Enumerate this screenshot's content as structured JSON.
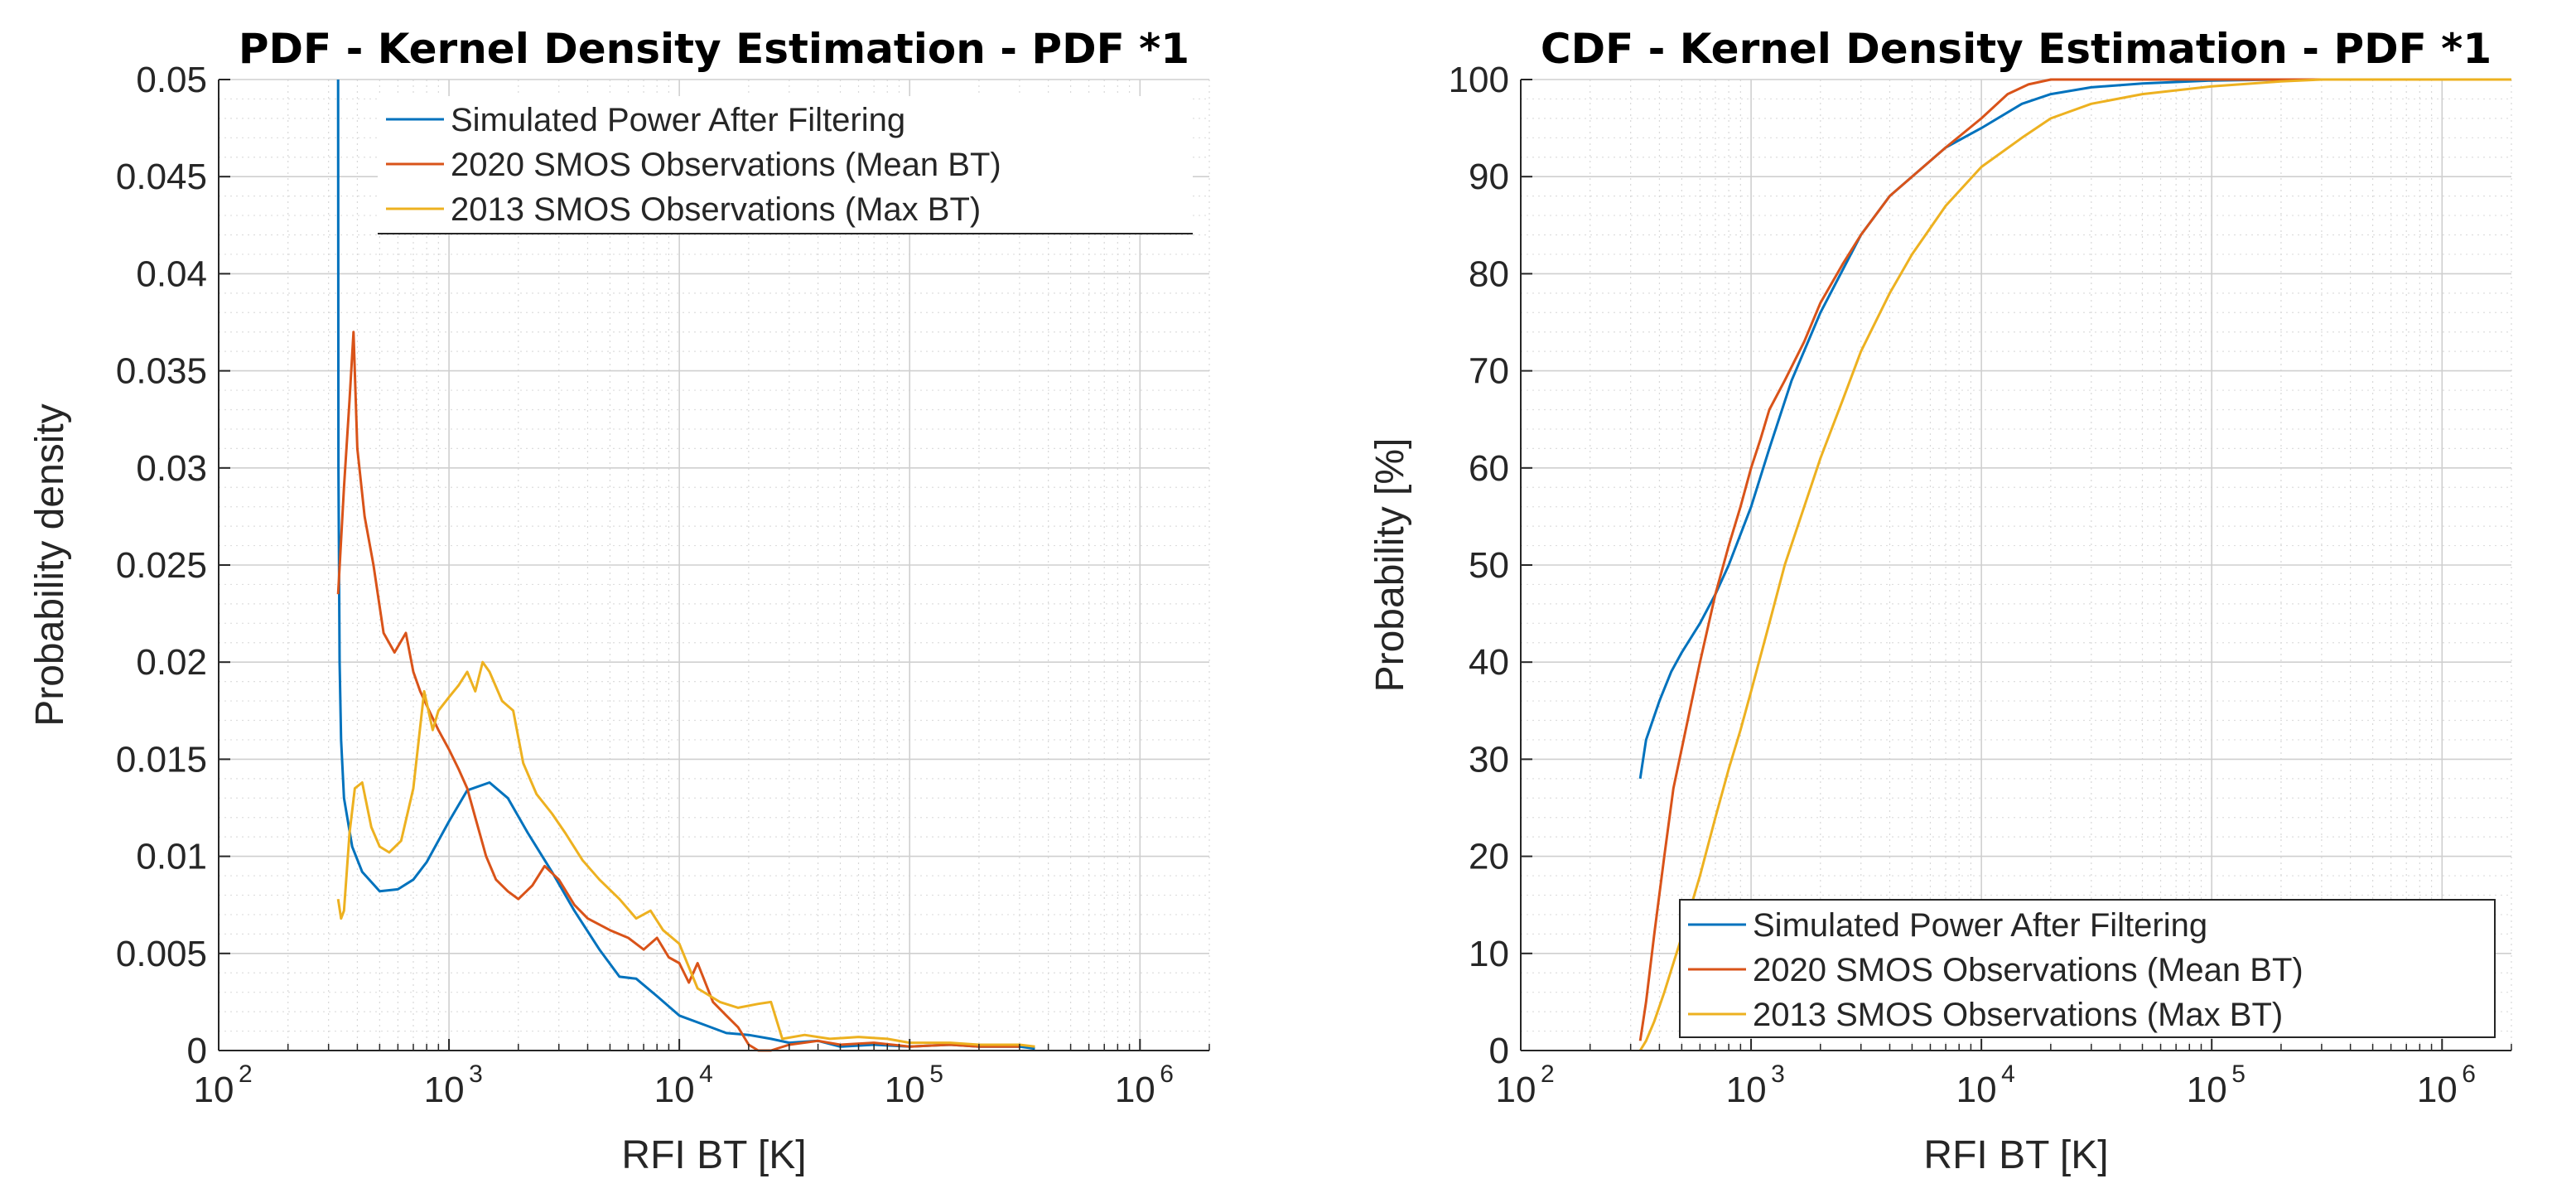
{
  "chart_data": [
    {
      "id": "pdf",
      "type": "line",
      "title": "PDF - Kernel Density Estimation - PDF *1",
      "xlabel": "RFI BT [K]",
      "ylabel": "Probability density",
      "xscale": "log",
      "xlim": [
        100,
        2000000
      ],
      "ylim": [
        0,
        0.05
      ],
      "yticks": [
        "0",
        "0.005",
        "0.01",
        "0.015",
        "0.02",
        "0.025",
        "0.03",
        "0.035",
        "0.04",
        "0.045",
        "0.05"
      ],
      "xticks": [
        {
          "base": "10",
          "exp": "2"
        },
        {
          "base": "10",
          "exp": "3"
        },
        {
          "base": "10",
          "exp": "4"
        },
        {
          "base": "10",
          "exp": "5"
        },
        {
          "base": "10",
          "exp": "6"
        }
      ],
      "grid": true,
      "legend_position": "top-right",
      "series": [
        {
          "name": "Simulated Power After Filtering",
          "color": "#0072BD",
          "x": [
            330,
            331,
            335,
            340,
            350,
            380,
            420,
            500,
            600,
            700,
            800,
            1000,
            1200,
            1500,
            1800,
            2200,
            2800,
            3500,
            4500,
            5500,
            6500,
            8000,
            10000,
            13000,
            16000,
            20000,
            25000,
            30000,
            40000,
            50000,
            70000,
            100000,
            150000,
            200000,
            300000,
            350000
          ],
          "y": [
            0.05,
            0.03,
            0.02,
            0.016,
            0.013,
            0.0105,
            0.0092,
            0.0082,
            0.0083,
            0.0088,
            0.0097,
            0.0118,
            0.0134,
            0.0138,
            0.013,
            0.0112,
            0.0092,
            0.0072,
            0.0052,
            0.0038,
            0.0037,
            0.0028,
            0.0018,
            0.0013,
            0.0009,
            0.0008,
            0.0006,
            0.0004,
            0.0005,
            0.0002,
            0.0003,
            0.0002,
            0.0003,
            0.0002,
            0.0002,
            0.0001
          ]
        },
        {
          "name": "2020 SMOS Observations (Mean BT)",
          "color": "#D95319",
          "x": [
            330,
            350,
            370,
            385,
            400,
            430,
            470,
            520,
            580,
            650,
            700,
            750,
            820,
            900,
            1000,
            1100,
            1200,
            1300,
            1450,
            1600,
            1800,
            2000,
            2300,
            2600,
            3000,
            3500,
            4000,
            5000,
            6000,
            7000,
            8000,
            9000,
            10000,
            11000,
            12000,
            14000,
            16000,
            18000,
            20000,
            22000,
            25000,
            30000,
            40000,
            50000,
            70000,
            100000,
            150000,
            200000,
            300000
          ],
          "y": [
            0.0235,
            0.029,
            0.0335,
            0.037,
            0.031,
            0.0275,
            0.025,
            0.0215,
            0.0205,
            0.0215,
            0.0195,
            0.0185,
            0.0175,
            0.0165,
            0.0155,
            0.0145,
            0.0135,
            0.012,
            0.01,
            0.0088,
            0.0082,
            0.0078,
            0.0085,
            0.0095,
            0.0088,
            0.0075,
            0.0068,
            0.0062,
            0.0058,
            0.0052,
            0.0058,
            0.0048,
            0.0045,
            0.0035,
            0.0045,
            0.0025,
            0.0018,
            0.0012,
            0.0003,
            0.0,
            0.0,
            0.0003,
            0.0005,
            0.0003,
            0.0004,
            0.0002,
            0.0003,
            0.0002,
            0.0002
          ]
        },
        {
          "name": "2013 SMOS Observations (Max BT)",
          "color": "#EDB120",
          "x": [
            330,
            340,
            350,
            370,
            390,
            420,
            460,
            500,
            550,
            620,
            700,
            780,
            850,
            900,
            1000,
            1100,
            1200,
            1300,
            1400,
            1500,
            1700,
            1900,
            2100,
            2400,
            2800,
            3200,
            3800,
            4500,
            5500,
            6500,
            7500,
            8500,
            10000,
            12000,
            15000,
            18000,
            22000,
            25000,
            28000,
            35000,
            45000,
            60000,
            80000,
            100000,
            150000,
            200000,
            300000,
            350000
          ],
          "y": [
            0.0078,
            0.0068,
            0.0072,
            0.0112,
            0.0135,
            0.0138,
            0.0115,
            0.0105,
            0.0102,
            0.0108,
            0.0135,
            0.0185,
            0.0165,
            0.0175,
            0.0182,
            0.0188,
            0.0195,
            0.0185,
            0.02,
            0.0195,
            0.018,
            0.0175,
            0.0148,
            0.0132,
            0.0122,
            0.0112,
            0.0098,
            0.0088,
            0.0078,
            0.0068,
            0.0072,
            0.0062,
            0.0055,
            0.0032,
            0.0025,
            0.0022,
            0.0024,
            0.0025,
            0.0006,
            0.0008,
            0.0006,
            0.0007,
            0.0006,
            0.0004,
            0.0004,
            0.0003,
            0.0003,
            0.0002
          ]
        }
      ]
    },
    {
      "id": "cdf",
      "type": "line",
      "title": "CDF - Kernel Density Estimation - PDF *1",
      "xlabel": "RFI BT [K]",
      "ylabel": "Probability [%]",
      "xscale": "log",
      "xlim": [
        100,
        2000000
      ],
      "ylim": [
        0,
        100
      ],
      "yticks": [
        "0",
        "10",
        "20",
        "30",
        "40",
        "50",
        "60",
        "70",
        "80",
        "90",
        "100"
      ],
      "xticks": [
        {
          "base": "10",
          "exp": "2"
        },
        {
          "base": "10",
          "exp": "3"
        },
        {
          "base": "10",
          "exp": "4"
        },
        {
          "base": "10",
          "exp": "5"
        },
        {
          "base": "10",
          "exp": "6"
        }
      ],
      "grid": true,
      "legend_position": "bottom-right",
      "series": [
        {
          "name": "Simulated Power After Filtering",
          "color": "#0072BD",
          "x": [
            330,
            350,
            400,
            450,
            500,
            600,
            700,
            800,
            1000,
            1200,
            1500,
            2000,
            3000,
            4000,
            5000,
            7000,
            10000,
            15000,
            20000,
            30000,
            50000,
            100000,
            200000,
            500000,
            2000000
          ],
          "y": [
            28,
            32,
            36,
            39,
            41,
            44,
            47,
            50,
            56,
            62,
            69,
            76,
            84,
            88,
            90,
            93,
            95,
            97.5,
            98.5,
            99.2,
            99.6,
            99.9,
            100,
            100,
            100
          ]
        },
        {
          "name": "2020 SMOS Observations (Mean BT)",
          "color": "#D95319",
          "x": [
            330,
            350,
            380,
            420,
            460,
            520,
            600,
            700,
            800,
            900,
            1000,
            1100,
            1200,
            1400,
            1700,
            2000,
            2500,
            3000,
            4000,
            5000,
            7000,
            10000,
            13000,
            16000,
            20000,
            25000,
            40000,
            100000,
            500000,
            2000000
          ],
          "y": [
            1,
            5,
            12,
            20,
            27,
            33,
            40,
            47,
            52,
            56,
            60,
            63,
            66,
            69,
            73,
            77,
            81,
            84,
            88,
            90,
            93,
            96,
            98.5,
            99.5,
            100,
            100,
            100,
            100,
            100,
            100
          ]
        },
        {
          "name": "2013 SMOS Observations (Max BT)",
          "color": "#EDB120",
          "x": [
            330,
            350,
            380,
            420,
            460,
            520,
            600,
            700,
            800,
            900,
            1000,
            1200,
            1400,
            1700,
            2000,
            2500,
            3000,
            4000,
            5000,
            7000,
            10000,
            15000,
            20000,
            30000,
            50000,
            100000,
            200000,
            300000,
            2000000
          ],
          "y": [
            0,
            1,
            3,
            6,
            9,
            13,
            18,
            24,
            29,
            33,
            37,
            44,
            50,
            56,
            61,
            67,
            72,
            78,
            82,
            87,
            91,
            94,
            96,
            97.5,
            98.5,
            99.3,
            99.8,
            100,
            100
          ]
        }
      ]
    }
  ]
}
